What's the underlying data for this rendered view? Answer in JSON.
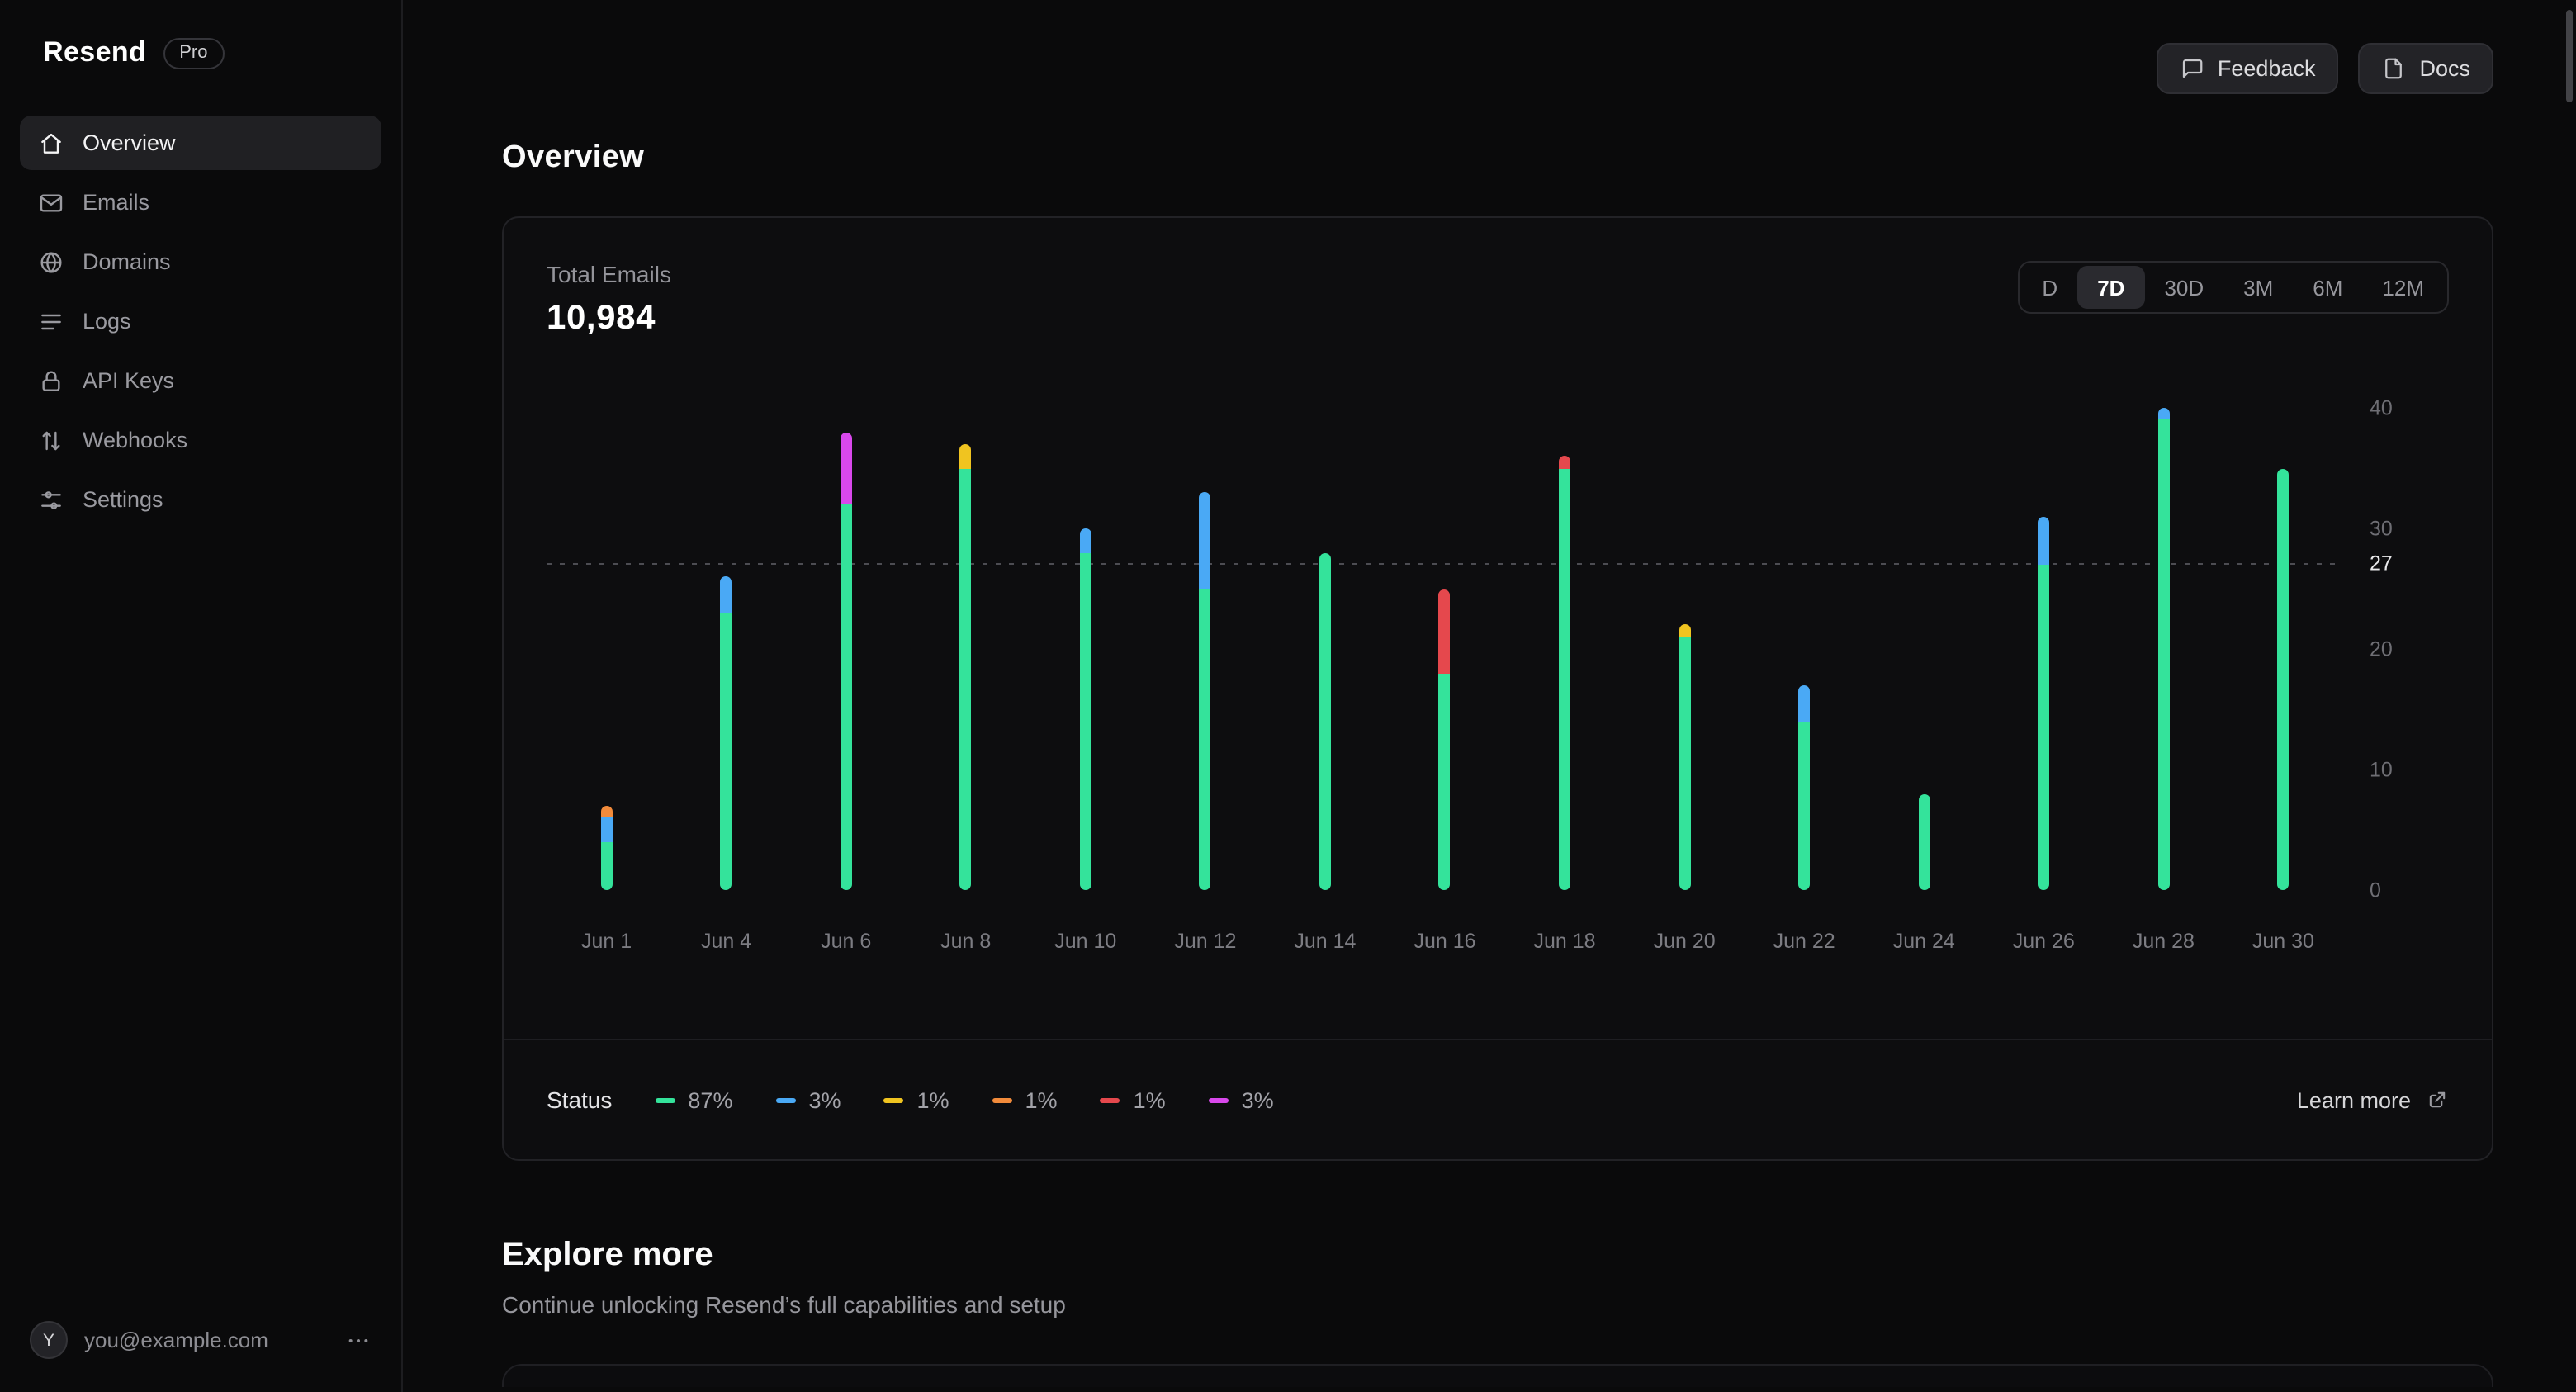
{
  "app": {
    "brand": "Resend",
    "plan_badge": "Pro"
  },
  "sidebar": {
    "items": [
      {
        "label": "Overview",
        "icon": "home",
        "active": true
      },
      {
        "label": "Emails",
        "icon": "mail",
        "active": false
      },
      {
        "label": "Domains",
        "icon": "globe",
        "active": false
      },
      {
        "label": "Logs",
        "icon": "logs",
        "active": false
      },
      {
        "label": "API Keys",
        "icon": "lock",
        "active": false
      },
      {
        "label": "Webhooks",
        "icon": "webhooks",
        "active": false
      },
      {
        "label": "Settings",
        "icon": "settings",
        "active": false
      }
    ],
    "user": {
      "avatar_initial": "Y",
      "email": "you@example.com"
    }
  },
  "header": {
    "feedback_label": "Feedback",
    "docs_label": "Docs"
  },
  "main": {
    "title": "Overview"
  },
  "card": {
    "metric_label": "Total Emails",
    "metric_value": "10,984",
    "ranges": [
      "D",
      "7D",
      "30D",
      "3M",
      "6M",
      "12M"
    ],
    "active_range": "7D",
    "status_label": "Status",
    "legend": [
      {
        "name": "green",
        "color": "#34e39b",
        "value": "87%"
      },
      {
        "name": "blue",
        "color": "#4aa9f5",
        "value": "3%"
      },
      {
        "name": "yellow",
        "color": "#f0c420",
        "value": "1%"
      },
      {
        "name": "orange",
        "color": "#f28b3b",
        "value": "1%"
      },
      {
        "name": "red",
        "color": "#e5484d",
        "value": "1%"
      },
      {
        "name": "magenta",
        "color": "#d948ec",
        "value": "3%"
      }
    ],
    "learn_more": "Learn more"
  },
  "chart_data": {
    "type": "bar",
    "stacked": true,
    "title": "Total Emails",
    "categories": [
      "Jun 1",
      "Jun 4",
      "Jun 6",
      "Jun 8",
      "Jun 10",
      "Jun 12",
      "Jun 14",
      "Jun 16",
      "Jun 18",
      "Jun 20",
      "Jun 22",
      "Jun 24",
      "Jun 26",
      "Jun 28",
      "Jun 30"
    ],
    "series": [
      {
        "name": "green",
        "color": "#34e39b",
        "values": [
          4,
          23,
          32,
          35,
          28,
          25,
          28,
          18,
          35,
          21,
          14,
          8,
          27,
          39,
          35
        ]
      },
      {
        "name": "blue",
        "color": "#4aa9f5",
        "values": [
          2,
          3,
          0,
          0,
          2,
          8,
          0,
          0,
          0,
          0,
          3,
          0,
          4,
          1,
          0
        ]
      },
      {
        "name": "yellow",
        "color": "#f0c420",
        "values": [
          0,
          0,
          0,
          2,
          0,
          0,
          0,
          0,
          0,
          1,
          0,
          0,
          0,
          0,
          0
        ]
      },
      {
        "name": "orange",
        "color": "#f28b3b",
        "values": [
          1,
          0,
          0,
          0,
          0,
          0,
          0,
          0,
          0,
          0,
          0,
          0,
          0,
          0,
          0
        ]
      },
      {
        "name": "red",
        "color": "#e5484d",
        "values": [
          0,
          0,
          0,
          0,
          0,
          0,
          0,
          7,
          1,
          0,
          0,
          0,
          0,
          0,
          0
        ]
      },
      {
        "name": "magenta",
        "color": "#d948ec",
        "values": [
          0,
          0,
          6,
          0,
          0,
          0,
          0,
          0,
          0,
          0,
          0,
          0,
          0,
          0,
          0
        ]
      }
    ],
    "ylim": [
      0,
      40
    ],
    "yticks": [
      0,
      10,
      20,
      30,
      40
    ],
    "average": 27,
    "grid": false,
    "legend_position": "bottom"
  },
  "explore": {
    "title": "Explore more",
    "subtitle": "Continue unlocking Resend’s full capabilities and setup"
  }
}
